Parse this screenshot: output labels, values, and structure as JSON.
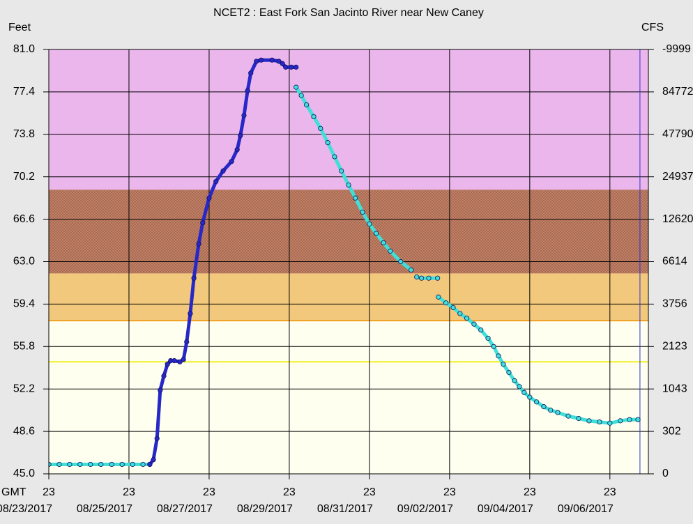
{
  "chart_data": {
    "type": "scatter",
    "title": "NCET2  :  East Fork San Jacinto River near New Caney",
    "ylabel": "Feet",
    "y2label": "CFS",
    "xlabel": "GMT",
    "xlim": [
      0,
      14.96
    ],
    "xticks": [
      {
        "value": 0,
        "label": "23"
      },
      {
        "value": 2,
        "label": "23"
      },
      {
        "value": 4,
        "label": "23"
      },
      {
        "value": 6,
        "label": "23"
      },
      {
        "value": 8,
        "label": "23"
      },
      {
        "value": 10,
        "label": "23"
      },
      {
        "value": 12,
        "label": "23"
      },
      {
        "value": 14,
        "label": "23"
      }
    ],
    "xtick_dates": [
      "08/23/2017",
      "08/25/2017",
      "08/27/2017",
      "08/29/2017",
      "08/31/2017",
      "09/02/2017",
      "09/04/2017",
      "09/06/2017"
    ],
    "ylim": [
      45,
      81
    ],
    "yticks": [
      {
        "value": 81,
        "label": "81.0"
      },
      77.4,
      73.8,
      70.2,
      66.6,
      {
        "value": 63,
        "label": "63.0"
      },
      59.4,
      55.8,
      52.2,
      48.6,
      {
        "value": 45,
        "label": "45.0"
      }
    ],
    "y2ticks": [
      -9999,
      84772,
      47790,
      24937,
      12620,
      6614,
      3756,
      2123,
      1043,
      302,
      0
    ],
    "grid": true,
    "bands": [
      {
        "from": 69.1,
        "to": 81,
        "color": "#ebb6ec"
      },
      {
        "from": 62.0,
        "to": 69.1,
        "color": "#c48468",
        "hatch": true
      },
      {
        "from": 58.0,
        "to": 62.0,
        "color": "#f2c87c"
      },
      {
        "from": 45,
        "to": 58.0,
        "color": "#fffff0"
      }
    ],
    "levels": [
      {
        "value": 58.0,
        "color": "#f0a020"
      },
      {
        "value": 54.5,
        "color": "#f0f020"
      }
    ],
    "now_x": 14.75,
    "now_color": "#3030d0",
    "series": [
      {
        "color": "#40e0d8",
        "x": [
          0,
          0.26,
          0.52,
          0.78,
          1.04,
          1.3,
          1.57,
          1.83,
          2.09,
          2.35,
          2.52
        ],
        "values": [
          45.8,
          45.8,
          45.8,
          45.8,
          45.8,
          45.8,
          45.8,
          45.8,
          45.8,
          45.8,
          45.8
        ]
      },
      {
        "color": "#2828c8",
        "x": [
          2.52,
          2.61,
          2.7,
          2.78,
          2.87,
          2.96,
          3.04,
          3.13,
          3.27,
          3.36,
          3.44,
          3.53,
          3.62,
          3.74,
          3.84,
          4.0,
          4.17,
          4.35,
          4.56,
          4.7,
          4.78,
          4.87,
          4.96,
          5.04,
          5.18,
          5.3,
          5.57,
          5.74,
          5.83,
          5.91,
          6.05,
          6.17
        ],
        "values": [
          45.8,
          46.2,
          48.0,
          52.1,
          53.3,
          54.3,
          54.6,
          54.6,
          54.5,
          54.7,
          56.2,
          58.6,
          61.6,
          64.5,
          66.3,
          68.4,
          69.8,
          70.7,
          71.5,
          72.5,
          73.7,
          75.4,
          77.5,
          79.0,
          80.0,
          80.1,
          80.1,
          80.0,
          79.8,
          79.5,
          79.5,
          79.5
        ]
      },
      {
        "color": "#40e0d8",
        "x": [
          6.17,
          6.3,
          6.43,
          6.61,
          6.78,
          6.96,
          7.13,
          7.3,
          7.48,
          7.65,
          7.83,
          8.0,
          8.17,
          8.35,
          8.52,
          8.78,
          9.04,
          9.11,
          9.18,
          9.3,
          9.48,
          9.7,
          9.71,
          9.72,
          9.91,
          10.09,
          10.26,
          10.43,
          10.61,
          10.78,
          10.96,
          11.1,
          11.22,
          11.34,
          11.48,
          11.62,
          11.74,
          11.86,
          12.0,
          12.17,
          12.35,
          12.52,
          12.7,
          12.96,
          13.22,
          13.48,
          13.74,
          14.0,
          14.26,
          14.49,
          14.7
        ],
        "values": [
          77.8,
          77.1,
          76.3,
          75.3,
          74.3,
          73.1,
          71.9,
          70.7,
          69.5,
          68.4,
          67.2,
          66.2,
          65.4,
          64.6,
          63.9,
          63.0,
          62.3,
          null,
          61.7,
          61.6,
          61.6,
          61.6,
          null,
          60.0,
          59.5,
          59.1,
          58.6,
          58.2,
          57.7,
          57.2,
          56.5,
          55.8,
          55.0,
          54.3,
          53.6,
          52.9,
          52.4,
          51.9,
          51.5,
          51.1,
          50.7,
          50.4,
          50.2,
          49.9,
          49.7,
          49.5,
          49.4,
          49.3,
          49.5,
          49.6,
          49.6
        ]
      }
    ]
  }
}
